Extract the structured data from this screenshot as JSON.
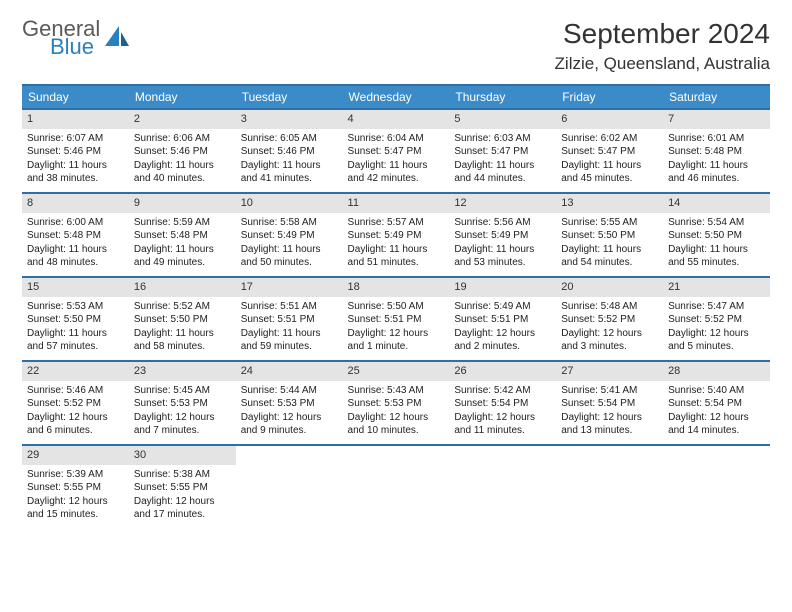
{
  "logo": {
    "text1": "General",
    "text2": "Blue"
  },
  "title": "September 2024",
  "location": "Zilzie, Queensland, Australia",
  "colors": {
    "header_bg": "#3b8bc9",
    "border": "#2f6fa3",
    "daynum_bg": "#e4e4e4"
  },
  "weekdays": [
    "Sunday",
    "Monday",
    "Tuesday",
    "Wednesday",
    "Thursday",
    "Friday",
    "Saturday"
  ],
  "days": [
    {
      "n": "1",
      "sr": "6:07 AM",
      "ss": "5:46 PM",
      "dl": "11 hours and 38 minutes."
    },
    {
      "n": "2",
      "sr": "6:06 AM",
      "ss": "5:46 PM",
      "dl": "11 hours and 40 minutes."
    },
    {
      "n": "3",
      "sr": "6:05 AM",
      "ss": "5:46 PM",
      "dl": "11 hours and 41 minutes."
    },
    {
      "n": "4",
      "sr": "6:04 AM",
      "ss": "5:47 PM",
      "dl": "11 hours and 42 minutes."
    },
    {
      "n": "5",
      "sr": "6:03 AM",
      "ss": "5:47 PM",
      "dl": "11 hours and 44 minutes."
    },
    {
      "n": "6",
      "sr": "6:02 AM",
      "ss": "5:47 PM",
      "dl": "11 hours and 45 minutes."
    },
    {
      "n": "7",
      "sr": "6:01 AM",
      "ss": "5:48 PM",
      "dl": "11 hours and 46 minutes."
    },
    {
      "n": "8",
      "sr": "6:00 AM",
      "ss": "5:48 PM",
      "dl": "11 hours and 48 minutes."
    },
    {
      "n": "9",
      "sr": "5:59 AM",
      "ss": "5:48 PM",
      "dl": "11 hours and 49 minutes."
    },
    {
      "n": "10",
      "sr": "5:58 AM",
      "ss": "5:49 PM",
      "dl": "11 hours and 50 minutes."
    },
    {
      "n": "11",
      "sr": "5:57 AM",
      "ss": "5:49 PM",
      "dl": "11 hours and 51 minutes."
    },
    {
      "n": "12",
      "sr": "5:56 AM",
      "ss": "5:49 PM",
      "dl": "11 hours and 53 minutes."
    },
    {
      "n": "13",
      "sr": "5:55 AM",
      "ss": "5:50 PM",
      "dl": "11 hours and 54 minutes."
    },
    {
      "n": "14",
      "sr": "5:54 AM",
      "ss": "5:50 PM",
      "dl": "11 hours and 55 minutes."
    },
    {
      "n": "15",
      "sr": "5:53 AM",
      "ss": "5:50 PM",
      "dl": "11 hours and 57 minutes."
    },
    {
      "n": "16",
      "sr": "5:52 AM",
      "ss": "5:50 PM",
      "dl": "11 hours and 58 minutes."
    },
    {
      "n": "17",
      "sr": "5:51 AM",
      "ss": "5:51 PM",
      "dl": "11 hours and 59 minutes."
    },
    {
      "n": "18",
      "sr": "5:50 AM",
      "ss": "5:51 PM",
      "dl": "12 hours and 1 minute."
    },
    {
      "n": "19",
      "sr": "5:49 AM",
      "ss": "5:51 PM",
      "dl": "12 hours and 2 minutes."
    },
    {
      "n": "20",
      "sr": "5:48 AM",
      "ss": "5:52 PM",
      "dl": "12 hours and 3 minutes."
    },
    {
      "n": "21",
      "sr": "5:47 AM",
      "ss": "5:52 PM",
      "dl": "12 hours and 5 minutes."
    },
    {
      "n": "22",
      "sr": "5:46 AM",
      "ss": "5:52 PM",
      "dl": "12 hours and 6 minutes."
    },
    {
      "n": "23",
      "sr": "5:45 AM",
      "ss": "5:53 PM",
      "dl": "12 hours and 7 minutes."
    },
    {
      "n": "24",
      "sr": "5:44 AM",
      "ss": "5:53 PM",
      "dl": "12 hours and 9 minutes."
    },
    {
      "n": "25",
      "sr": "5:43 AM",
      "ss": "5:53 PM",
      "dl": "12 hours and 10 minutes."
    },
    {
      "n": "26",
      "sr": "5:42 AM",
      "ss": "5:54 PM",
      "dl": "12 hours and 11 minutes."
    },
    {
      "n": "27",
      "sr": "5:41 AM",
      "ss": "5:54 PM",
      "dl": "12 hours and 13 minutes."
    },
    {
      "n": "28",
      "sr": "5:40 AM",
      "ss": "5:54 PM",
      "dl": "12 hours and 14 minutes."
    },
    {
      "n": "29",
      "sr": "5:39 AM",
      "ss": "5:55 PM",
      "dl": "12 hours and 15 minutes."
    },
    {
      "n": "30",
      "sr": "5:38 AM",
      "ss": "5:55 PM",
      "dl": "12 hours and 17 minutes."
    }
  ],
  "labels": {
    "sunrise": "Sunrise:",
    "sunset": "Sunset:",
    "daylight": "Daylight:"
  },
  "start_offset": 0,
  "total_cells": 35
}
